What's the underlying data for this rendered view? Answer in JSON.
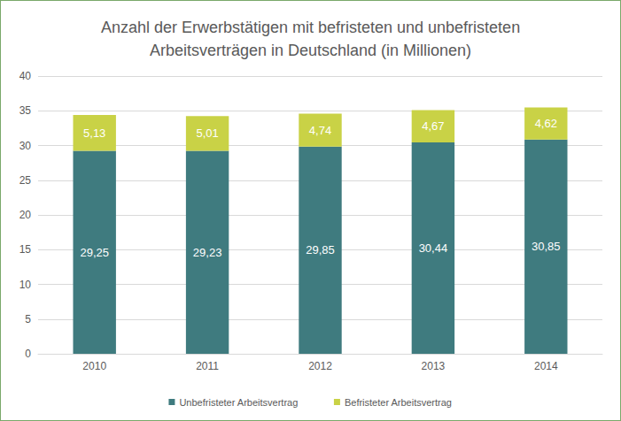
{
  "chart_data": {
    "type": "bar",
    "title": "Anzahl der Erwerbstätigen mit befristeten und unbefristeten\nArbeitsverträgen in Deutschland (in Millionen)",
    "categories": [
      "2010",
      "2011",
      "2012",
      "2013",
      "2014"
    ],
    "series": [
      {
        "name": "Unbefristeter Arbeitsvertrag",
        "color": "#3f7b7f",
        "values": [
          29.25,
          29.23,
          29.85,
          30.44,
          30.85
        ],
        "value_labels": [
          "29,25",
          "29,23",
          "29,85",
          "30,44",
          "30,85"
        ]
      },
      {
        "name": "Befristeter Arbeitsvertrag",
        "color": "#c9d246",
        "values": [
          5.13,
          5.01,
          4.74,
          4.67,
          4.62
        ],
        "value_labels": [
          "5,13",
          "5,01",
          "4,74",
          "4,67",
          "4,62"
        ]
      }
    ],
    "ylim": [
      0,
      40
    ],
    "yticks": [
      0,
      5,
      10,
      15,
      20,
      25,
      30,
      35,
      40
    ],
    "stacked": true,
    "grid": true,
    "legend": "bottom",
    "data_labels": true
  }
}
